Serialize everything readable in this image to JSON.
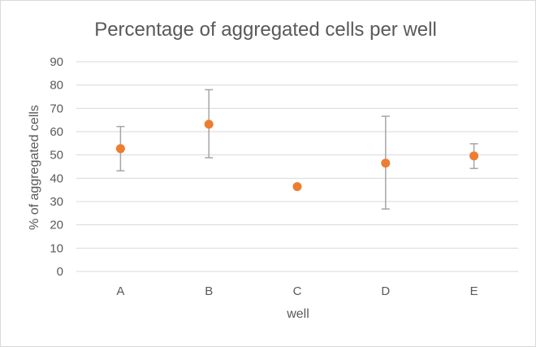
{
  "chart_data": {
    "type": "scatter",
    "title": "Percentage of aggregated cells per well",
    "xlabel": "well",
    "ylabel": "% of aggregated cells",
    "categories": [
      "A",
      "B",
      "C",
      "D",
      "E"
    ],
    "series": [
      {
        "values": [
          52.7,
          63.2,
          36.4,
          46.5,
          49.6
        ],
        "error_low": [
          43.2,
          48.8,
          36.4,
          26.8,
          44.2
        ],
        "error_high": [
          62.2,
          78.0,
          36.4,
          66.6,
          54.8
        ]
      }
    ],
    "ylim": [
      0,
      90
    ],
    "yticks": [
      0,
      10,
      20,
      30,
      40,
      50,
      60,
      70,
      80,
      90
    ],
    "grid": true,
    "legend": "none",
    "colors": {
      "marker": "#ED7D31",
      "error_bar": "#A5A5A5",
      "gridline": "#D9D9D9",
      "text": "#595959"
    }
  }
}
